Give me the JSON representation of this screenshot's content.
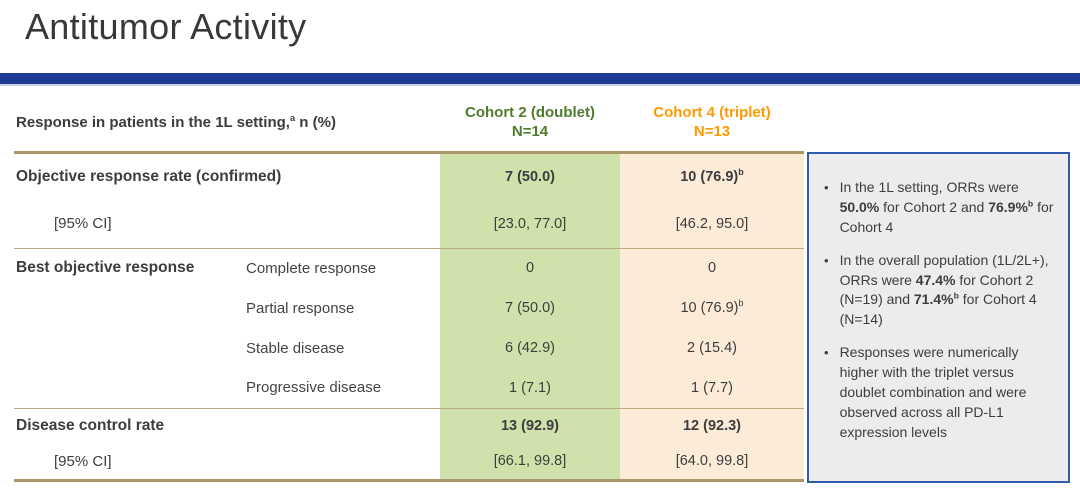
{
  "page": {
    "title": "Antitumor Activity"
  },
  "colors": {
    "title_bar": "#1a3a94",
    "title_bar_underline": "#c6cfe3",
    "table_border": "#aa9669",
    "table_separator": "#beaa82",
    "cohort2_text": "#4e7b2c",
    "cohort2_cell_bg": "#d0e2ab",
    "cohort4_text": "#ff9900",
    "cohort4_cell_bg": "#fcecd7",
    "sidebar_border": "#2f5cab",
    "sidebar_bg": "#ececee"
  },
  "table": {
    "caption": "Response in patients in the 1L setting,^a n (%)",
    "columns": [
      {
        "label": "Cohort 2 (doublet)",
        "n_label": "N=14",
        "text_color": "#4e7b2c",
        "cell_bg": "#d0e2ab"
      },
      {
        "label": "Cohort 4 (triplet)",
        "n_label": "N=13",
        "text_color": "#ff9900",
        "cell_bg": "#fcecd7"
      }
    ],
    "rows": [
      {
        "label": "Objective response rate (confirmed)",
        "label_bold": true,
        "label_indent": false,
        "sublabel": "",
        "values": [
          "7 (50.0)",
          "10 (76.9)^b"
        ],
        "values_bold": true,
        "separator_above": false
      },
      {
        "label": "[95% CI]",
        "label_bold": false,
        "label_indent": true,
        "sublabel": "",
        "values": [
          "[23.0, 77.0]",
          "[46.2, 95.0]"
        ],
        "values_bold": false,
        "separator_above": false
      },
      {
        "label": "Best objective response",
        "label_bold": true,
        "label_indent": false,
        "sublabel": "Complete response",
        "values": [
          "0",
          "0"
        ],
        "values_bold": false,
        "separator_above": true
      },
      {
        "label": "",
        "label_bold": false,
        "label_indent": false,
        "sublabel": "Partial response",
        "values": [
          "7 (50.0)",
          "10 (76.9)^b"
        ],
        "values_bold": false,
        "separator_above": false
      },
      {
        "label": "",
        "label_bold": false,
        "label_indent": false,
        "sublabel": "Stable disease",
        "values": [
          "6 (42.9)",
          "2 (15.4)"
        ],
        "values_bold": false,
        "separator_above": false
      },
      {
        "label": "",
        "label_bold": false,
        "label_indent": false,
        "sublabel": "Progressive disease",
        "values": [
          "1 (7.1)",
          "1 (7.7)"
        ],
        "values_bold": false,
        "separator_above": false
      },
      {
        "label": "Disease control rate",
        "label_bold": true,
        "label_indent": false,
        "sublabel": "",
        "values": [
          "13 (92.9)",
          "12 (92.3)"
        ],
        "values_bold": true,
        "separator_above": true
      },
      {
        "label": "[95% CI]",
        "label_bold": false,
        "label_indent": true,
        "sublabel": "",
        "values": [
          "[66.1, 99.8]",
          "[64.0, 99.8]"
        ],
        "values_bold": false,
        "separator_above": false
      }
    ]
  },
  "sidebar": {
    "bullet_glyph": "•",
    "bullets": [
      "In the 1L setting, ORRs were **50.0%** for Cohort 2 and **76.9%^b** for Cohort 4",
      "In the overall population (1L/2L+), ORRs were **47.4%** for Cohort 2 (N=19) and **71.4%^b** for Cohort 4 (N=14)",
      "Responses were numerically higher with the triplet versus doublet combination and were observed across all PD-L1 expression levels"
    ]
  }
}
